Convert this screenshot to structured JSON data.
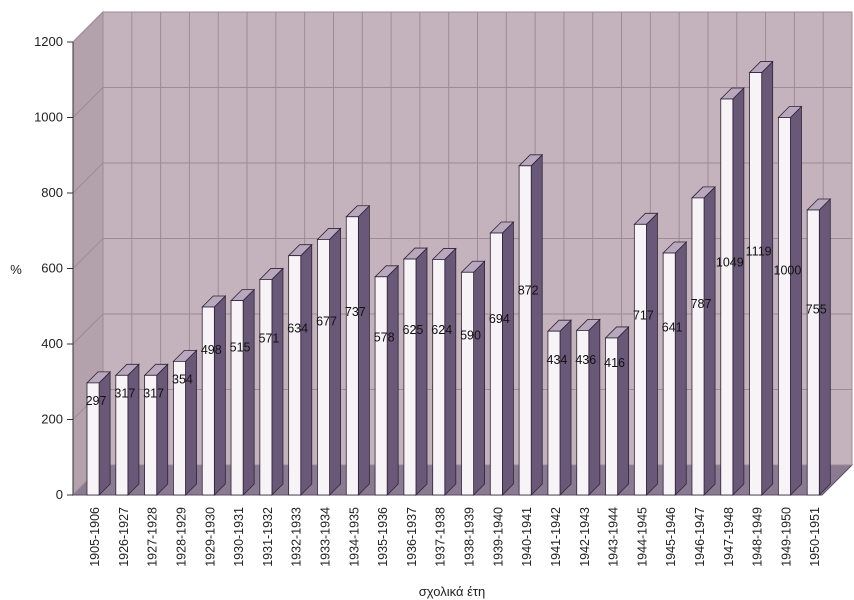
{
  "chart_data": {
    "type": "bar",
    "title": "",
    "xlabel": "σχολικά έτη",
    "ylabel": "%",
    "ylim": [
      0,
      1200
    ],
    "yticks": [
      0,
      200,
      400,
      600,
      800,
      1000,
      1200
    ],
    "grid": true,
    "legend": "none",
    "categories": [
      "1905-1906",
      "1926-1927",
      "1927-1928",
      "1928-1929",
      "1929-1930",
      "1930-1931",
      "1931-1932",
      "1932-1933",
      "1933-1934",
      "1934-1935",
      "1935-1936",
      "1936-1937",
      "1937-1938",
      "1938-1939",
      "1939-1940",
      "1940-1941",
      "1941-1942",
      "1942-1943",
      "1943-1944",
      "1944-1945",
      "1945-1946",
      "1946-1947",
      "1947-1948",
      "1948-1949",
      "1949-1950",
      "1950-1951"
    ],
    "values": [
      297,
      317,
      317,
      354,
      498,
      515,
      571,
      634,
      677,
      737,
      578,
      625,
      624,
      590,
      694,
      872,
      434,
      436,
      416,
      717,
      641,
      787,
      1049,
      1119,
      1000,
      755
    ],
    "value_labels": [
      "297",
      "317",
      "317",
      "354",
      "498",
      "515",
      "571",
      "634",
      "677",
      "737",
      "578",
      "625",
      "624",
      "590",
      "694",
      "872",
      "434",
      "436",
      "416",
      "717",
      "641",
      "787",
      "1049",
      "1119",
      "1000",
      "755"
    ],
    "colors": {
      "plot_background": "#c4b3bc",
      "grid": "#9e8b95",
      "bar_front": "#f7f3f7",
      "bar_side": "#6a5878",
      "bar_top": "#b9a7be",
      "floor": "#8a7a92"
    }
  }
}
